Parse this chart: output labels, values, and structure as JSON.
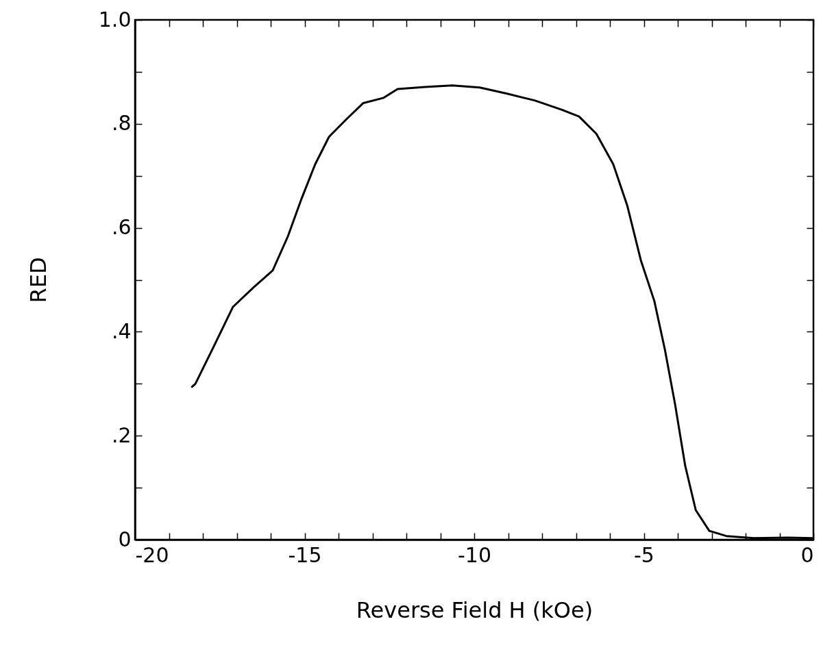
{
  "chart_data": {
    "type": "line",
    "xlabel": "Reverse Field H (kOe)",
    "ylabel": "RED",
    "color": "#000000",
    "x": [
      -18.32,
      -18.22,
      -17.72,
      -17.11,
      -16.51,
      -15.94,
      -15.49,
      -15.09,
      -14.69,
      -14.28,
      -13.78,
      -13.27,
      -12.67,
      -12.26,
      -11.45,
      -10.65,
      -9.84,
      -9.03,
      -8.22,
      -7.41,
      -6.91,
      -6.4,
      -5.9,
      -5.49,
      -5.09,
      -4.69,
      -4.38,
      -4.08,
      -3.78,
      -3.47,
      -3.07,
      -2.57,
      -1.76,
      -0.75,
      -0.04
    ],
    "values": [
      0.294,
      0.3,
      0.366,
      0.448,
      0.485,
      0.518,
      0.584,
      0.656,
      0.722,
      0.775,
      0.808,
      0.84,
      0.85,
      0.867,
      0.871,
      0.874,
      0.87,
      0.858,
      0.845,
      0.827,
      0.814,
      0.781,
      0.722,
      0.643,
      0.538,
      0.459,
      0.366,
      0.261,
      0.142,
      0.057,
      0.017,
      0.007,
      0.003,
      0.004,
      0.003
    ],
    "xlim": [
      -20,
      0
    ],
    "xticks": [
      -20,
      {
        "value": -19,
        "label": null
      },
      {
        "value": -18,
        "label": null
      },
      {
        "value": -17,
        "label": null
      },
      {
        "value": -16,
        "label": null
      },
      -15,
      {
        "value": -14,
        "label": null
      },
      {
        "value": -13,
        "label": null
      },
      {
        "value": -12,
        "label": null
      },
      {
        "value": -11,
        "label": null
      },
      -10,
      {
        "value": -9,
        "label": null
      },
      {
        "value": -8,
        "label": null
      },
      {
        "value": -7,
        "label": null
      },
      {
        "value": -6,
        "label": null
      },
      -5,
      {
        "value": -4,
        "label": null
      },
      {
        "value": -3,
        "label": null
      },
      {
        "value": -2,
        "label": null
      },
      {
        "value": -1,
        "label": null
      },
      0
    ],
    "ylim": [
      0,
      1
    ],
    "yticks": [
      0,
      {
        "value": 0.1,
        "label": null
      },
      {
        "value": 0.2,
        "label": ".2"
      },
      {
        "value": 0.3,
        "label": null
      },
      {
        "value": 0.4,
        "label": ".4"
      },
      {
        "value": 0.5,
        "label": null
      },
      {
        "value": 0.6,
        "label": ".6"
      },
      {
        "value": 0.7,
        "label": null
      },
      {
        "value": 0.8,
        "label": ".8"
      },
      {
        "value": 0.9,
        "label": null
      },
      {
        "value": 1,
        "label": "1.0"
      }
    ],
    "grid": false,
    "line_style": "solid",
    "marker": "none"
  }
}
